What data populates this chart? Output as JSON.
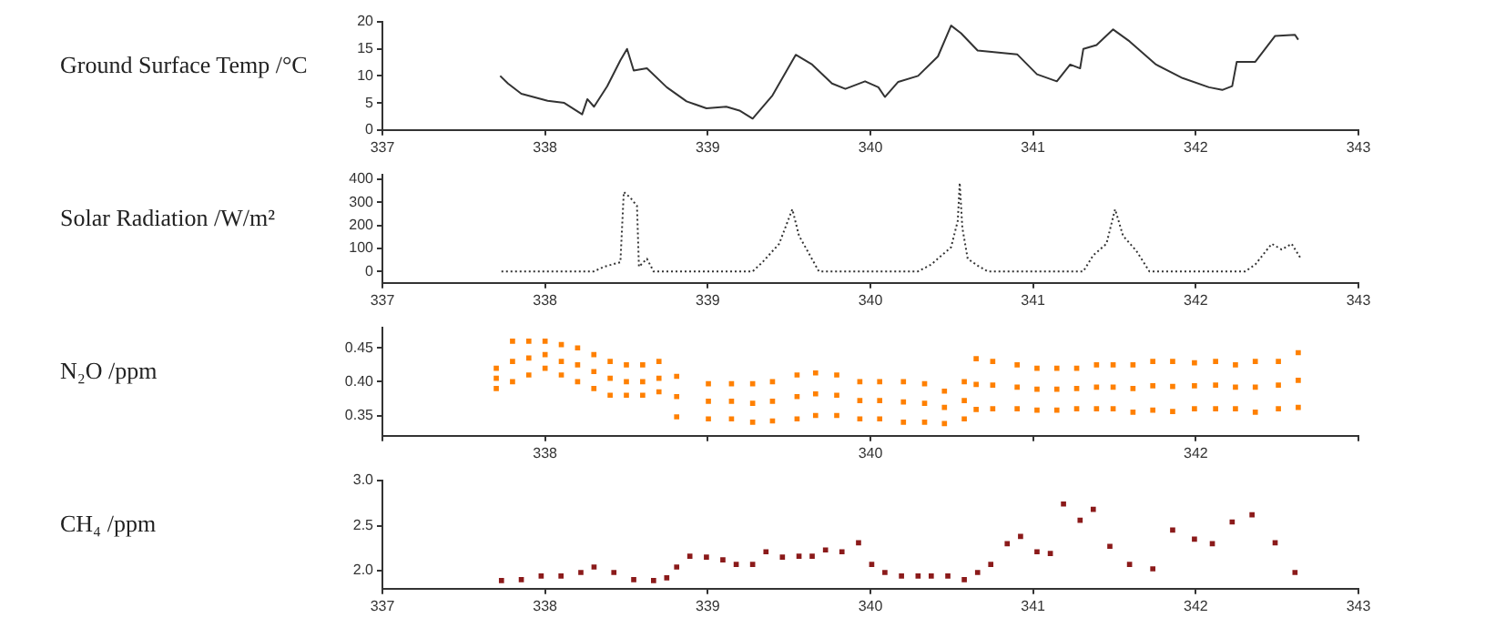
{
  "chart_data": [
    {
      "type": "line",
      "ylabel": "Ground Surface Temp /°C",
      "xlim": [
        337,
        343
      ],
      "xticks": [
        337,
        338,
        339,
        340,
        341,
        342,
        343
      ],
      "ylim": [
        0,
        20
      ],
      "yticks": [
        0,
        5,
        10,
        15,
        20
      ],
      "grid": false,
      "legend": false,
      "marker": "none",
      "line_style": "solid",
      "series": [
        {
          "color": "#333333",
          "x": [
            337.724,
            337.772,
            337.854,
            338.016,
            338.118,
            338.228,
            338.26,
            338.301,
            338.382,
            338.463,
            338.504,
            338.545,
            338.626,
            338.748,
            338.87,
            338.992,
            339.114,
            339.195,
            339.276,
            339.398,
            339.541,
            339.642,
            339.764,
            339.846,
            339.967,
            340.049,
            340.089,
            340.171,
            340.293,
            340.415,
            340.496,
            340.557,
            340.659,
            340.902,
            341.024,
            341.146,
            341.228,
            341.289,
            341.309,
            341.39,
            341.492,
            341.593,
            341.756,
            341.919,
            342.081,
            342.163,
            342.224,
            342.252,
            342.366,
            342.488,
            342.61,
            342.63
          ],
          "values": [
            10,
            8.6,
            6.7,
            5.4,
            5,
            2.9,
            5.7,
            4.3,
            8.1,
            12.9,
            15,
            11,
            11.4,
            7.9,
            5.3,
            4,
            4.3,
            3.6,
            2.1,
            6.4,
            13.9,
            12.1,
            8.6,
            7.6,
            9,
            7.9,
            6.1,
            8.9,
            10,
            13.6,
            19.3,
            17.9,
            14.7,
            14,
            10.3,
            9,
            12.1,
            11.4,
            15,
            15.7,
            18.6,
            16.4,
            12.1,
            9.6,
            7.9,
            7.4,
            8.1,
            12.6,
            12.6,
            17.4,
            17.6,
            16.7
          ]
        }
      ]
    },
    {
      "type": "line",
      "ylabel": "Solar Radiation /W/m²",
      "xlim": [
        337,
        343
      ],
      "xticks": [
        337,
        338,
        339,
        340,
        341,
        342,
        343
      ],
      "ylim": [
        -50,
        420
      ],
      "yticks": [
        0,
        100,
        200,
        300,
        400
      ],
      "grid": false,
      "legend": false,
      "marker": "none",
      "line_style": "dotted",
      "series": [
        {
          "color": "#333333",
          "x": [
            337.732,
            338.301,
            338.362,
            338.463,
            338.484,
            338.524,
            338.565,
            338.577,
            338.626,
            338.667,
            339.276,
            339.337,
            339.439,
            339.52,
            339.561,
            339.683,
            340.293,
            340.374,
            340.496,
            340.537,
            340.549,
            340.565,
            340.598,
            340.659,
            340.72,
            341.309,
            341.37,
            341.451,
            341.504,
            341.553,
            341.634,
            341.715,
            342.305,
            342.366,
            342.467,
            342.528,
            342.589,
            342.642
          ],
          "values": [
            0,
            0,
            20,
            40,
            345,
            320,
            285,
            20,
            55,
            0,
            0,
            40,
            120,
            270,
            155,
            0,
            0,
            30,
            105,
            220,
            385,
            190,
            55,
            25,
            0,
            0,
            70,
            120,
            270,
            155,
            90,
            0,
            0,
            30,
            120,
            95,
            120,
            60
          ]
        }
      ]
    },
    {
      "type": "scatter",
      "ylabel": "N₂O /ppm",
      "xlim": [
        337,
        343
      ],
      "xticks": [
        {
          "value": 337,
          "label": null
        },
        338,
        {
          "value": 339,
          "label": null
        },
        340,
        {
          "value": 341,
          "label": null
        },
        342,
        {
          "value": 343,
          "label": null
        }
      ],
      "ylim": [
        0.32,
        0.48
      ],
      "yticks": [
        {
          "value": 0.35,
          "label": "0.35"
        },
        {
          "value": 0.4,
          "label": "0.40"
        },
        {
          "value": 0.45,
          "label": "0.45"
        }
      ],
      "grid": false,
      "legend": false,
      "marker": "square",
      "series": [
        {
          "color": "#ff8000",
          "x": [
            337.7,
            337.7,
            337.7,
            337.8,
            337.8,
            337.8,
            337.9,
            337.9,
            337.9,
            338.0,
            338.0,
            338.0,
            338.1,
            338.1,
            338.1,
            338.2,
            338.2,
            338.2,
            338.3,
            338.3,
            338.3,
            338.4,
            338.4,
            338.4,
            338.5,
            338.5,
            338.5,
            338.6,
            338.6,
            338.6,
            338.7,
            338.7,
            338.7,
            338.809,
            338.809,
            338.809,
            339.004,
            339.004,
            339.004,
            339.146,
            339.146,
            339.146,
            339.276,
            339.276,
            339.276,
            339.398,
            339.398,
            339.398,
            339.549,
            339.549,
            339.549,
            339.663,
            339.663,
            339.663,
            339.793,
            339.793,
            339.793,
            339.935,
            339.935,
            339.935,
            340.057,
            340.057,
            340.057,
            340.203,
            340.203,
            340.203,
            340.333,
            340.333,
            340.333,
            340.455,
            340.455,
            340.455,
            340.577,
            340.577,
            340.577,
            340.65,
            340.65,
            340.65,
            340.752,
            340.752,
            340.752,
            340.902,
            340.902,
            340.902,
            341.024,
            341.024,
            341.024,
            341.146,
            341.146,
            341.146,
            341.268,
            341.268,
            341.268,
            341.39,
            341.39,
            341.39,
            341.492,
            341.492,
            341.492,
            341.614,
            341.614,
            341.614,
            341.736,
            341.736,
            341.736,
            341.858,
            341.858,
            341.858,
            341.992,
            341.992,
            341.992,
            342.122,
            342.122,
            342.122,
            342.244,
            342.244,
            342.244,
            342.366,
            342.366,
            342.366,
            342.508,
            342.508,
            342.508,
            342.63,
            342.63,
            342.63
          ],
          "values": [
            0.39,
            0.405,
            0.42,
            0.4,
            0.43,
            0.46,
            0.41,
            0.435,
            0.46,
            0.42,
            0.44,
            0.46,
            0.41,
            0.43,
            0.455,
            0.4,
            0.425,
            0.45,
            0.39,
            0.415,
            0.44,
            0.38,
            0.405,
            0.43,
            0.38,
            0.4,
            0.425,
            0.38,
            0.4,
            0.425,
            0.385,
            0.405,
            0.43,
            0.348,
            0.378,
            0.408,
            0.345,
            0.371,
            0.397,
            0.345,
            0.371,
            0.397,
            0.34,
            0.368,
            0.397,
            0.342,
            0.371,
            0.4,
            0.345,
            0.378,
            0.41,
            0.35,
            0.382,
            0.413,
            0.35,
            0.38,
            0.41,
            0.345,
            0.372,
            0.4,
            0.345,
            0.372,
            0.4,
            0.34,
            0.37,
            0.4,
            0.34,
            0.368,
            0.397,
            0.338,
            0.362,
            0.386,
            0.345,
            0.372,
            0.4,
            0.359,
            0.396,
            0.434,
            0.36,
            0.395,
            0.43,
            0.36,
            0.392,
            0.425,
            0.358,
            0.389,
            0.42,
            0.358,
            0.389,
            0.42,
            0.36,
            0.39,
            0.42,
            0.36,
            0.392,
            0.425,
            0.36,
            0.392,
            0.425,
            0.355,
            0.39,
            0.425,
            0.358,
            0.394,
            0.43,
            0.356,
            0.393,
            0.43,
            0.36,
            0.394,
            0.428,
            0.36,
            0.395,
            0.43,
            0.36,
            0.392,
            0.425,
            0.355,
            0.392,
            0.43,
            0.36,
            0.395,
            0.43,
            0.362,
            0.402,
            0.443
          ]
        }
      ]
    },
    {
      "type": "scatter",
      "ylabel": "CH₄ /ppm",
      "xlim": [
        337,
        343
      ],
      "xticks": [
        337,
        338,
        339,
        340,
        341,
        342,
        343
      ],
      "ylim": [
        1.8,
        3.0
      ],
      "yticks": [
        {
          "value": 2.0,
          "label": "2.0"
        },
        {
          "value": 2.5,
          "label": "2.5"
        },
        {
          "value": 3.0,
          "label": "3.0"
        }
      ],
      "grid": false,
      "legend": false,
      "marker": "square",
      "series": [
        {
          "color": "#8b1a1a",
          "x": [
            337.732,
            337.854,
            337.976,
            338.098,
            338.22,
            338.301,
            338.423,
            338.545,
            338.667,
            338.748,
            338.809,
            338.89,
            338.992,
            339.093,
            339.175,
            339.276,
            339.358,
            339.459,
            339.561,
            339.642,
            339.724,
            339.825,
            339.927,
            340.008,
            340.089,
            340.191,
            340.293,
            340.374,
            340.476,
            340.577,
            340.659,
            340.74,
            340.841,
            340.923,
            341.024,
            341.106,
            341.187,
            341.289,
            341.37,
            341.472,
            341.593,
            341.736,
            341.858,
            341.992,
            342.102,
            342.224,
            342.346,
            342.488,
            342.61
          ],
          "values": [
            1.89,
            1.9,
            1.94,
            1.94,
            1.98,
            2.04,
            1.98,
            1.9,
            1.89,
            1.92,
            2.04,
            2.16,
            2.15,
            2.12,
            2.07,
            2.07,
            2.21,
            2.15,
            2.16,
            2.16,
            2.23,
            2.21,
            2.31,
            2.07,
            1.98,
            1.94,
            1.94,
            1.94,
            1.94,
            1.9,
            1.98,
            2.07,
            2.3,
            2.38,
            2.21,
            2.19,
            2.74,
            2.56,
            2.68,
            2.27,
            2.07,
            2.02,
            2.45,
            2.35,
            2.3,
            2.54,
            2.62,
            2.31,
            1.98
          ]
        }
      ]
    }
  ]
}
